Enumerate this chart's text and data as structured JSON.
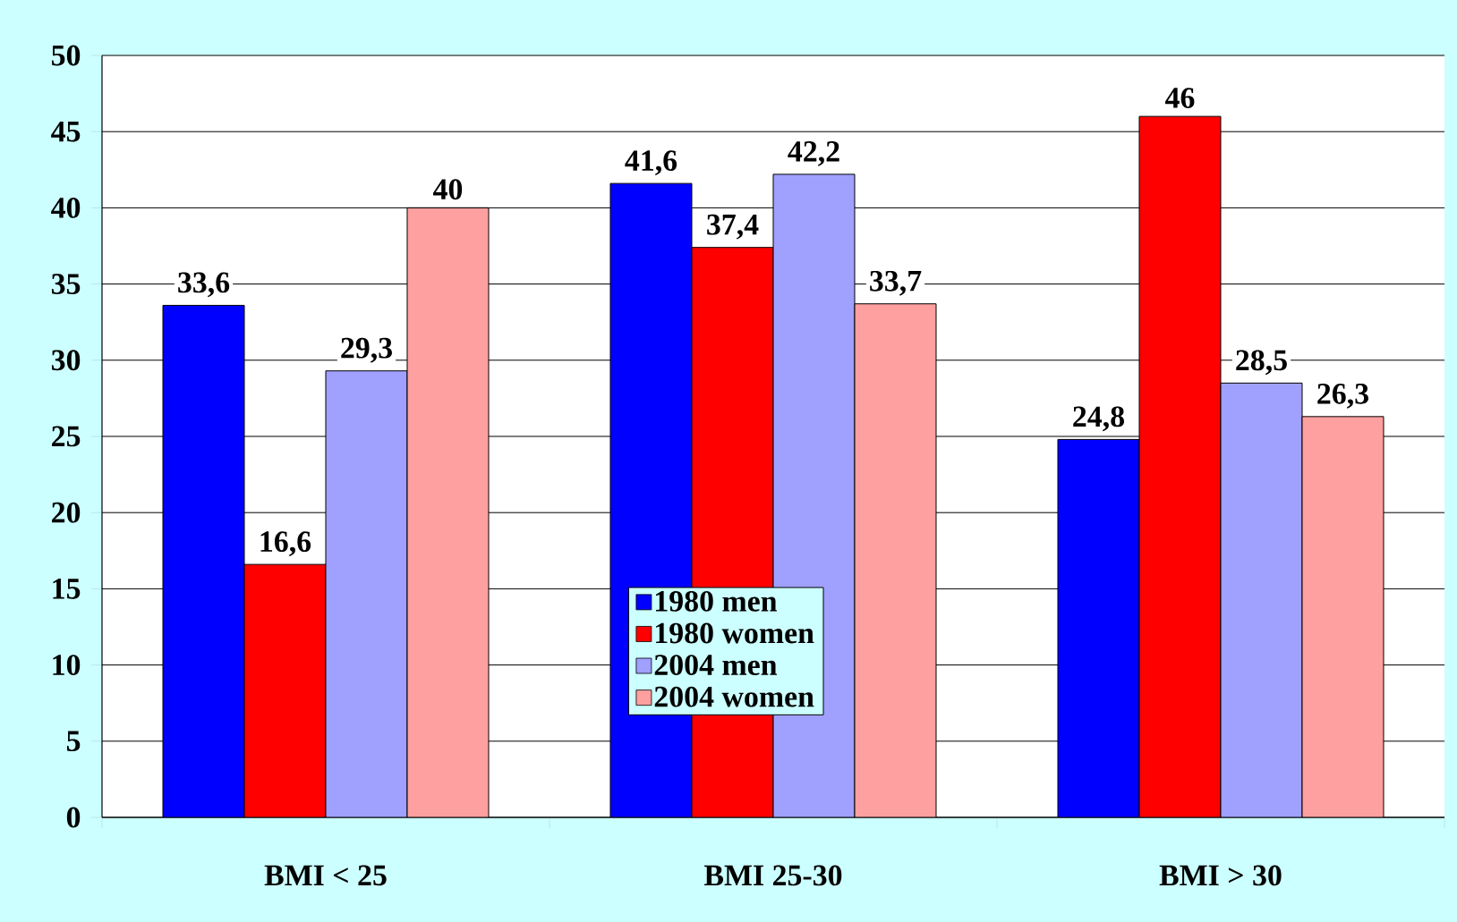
{
  "chart_data": {
    "type": "bar",
    "categories": [
      "BMI < 25",
      "BMI 25-30",
      "BMI > 30"
    ],
    "series": [
      {
        "name": "1980 men",
        "color": "#0000ff",
        "values": [
          33.6,
          41.6,
          24.8
        ],
        "value_labels": [
          "33,6",
          "41,6",
          "24,8"
        ]
      },
      {
        "name": "1980 women",
        "color": "#ff0000",
        "values": [
          16.6,
          37.4,
          46
        ],
        "value_labels": [
          "16,6",
          "37,4",
          "46"
        ]
      },
      {
        "name": "2004 men",
        "color": "#a0a0ff",
        "values": [
          29.3,
          42.2,
          28.5
        ],
        "value_labels": [
          "29,3",
          "42,2",
          "28,5"
        ]
      },
      {
        "name": "2004 women",
        "color": "#ffa0a0",
        "values": [
          40,
          33.7,
          26.3
        ],
        "value_labels": [
          "40",
          "33,7",
          "26,3"
        ]
      }
    ],
    "ylim": [
      0,
      50
    ],
    "yticks": [
      0,
      5,
      10,
      15,
      20,
      25,
      30,
      35,
      40,
      45,
      50
    ],
    "grid": "y",
    "legend": "bottom"
  }
}
